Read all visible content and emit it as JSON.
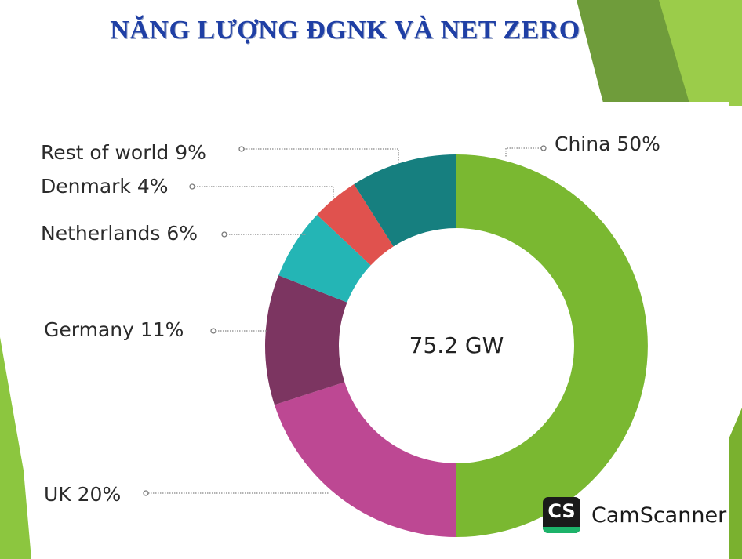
{
  "page": {
    "title": "NĂNG LƯỢNG ĐGNK VÀ NET ZERO",
    "watermark": {
      "logo_text": "CS",
      "name": "CamScanner"
    }
  },
  "colors": {
    "title": "#1f3fa5",
    "slide_green_dark": "#6f9c3b",
    "slide_green_light": "#9bcc4a"
  },
  "chart_data": {
    "type": "pie",
    "style": "donut",
    "title": "",
    "center_label": "75.2 GW",
    "unit": "%",
    "slices": [
      {
        "name": "China",
        "value": 50,
        "label": "China 50%",
        "color": "#7ab831"
      },
      {
        "name": "UK",
        "value": 20,
        "label": "UK 20%",
        "color": "#bd4893"
      },
      {
        "name": "Germany",
        "value": 11,
        "label": "Germany 11%",
        "color": "#7c3561"
      },
      {
        "name": "Netherlands",
        "value": 6,
        "label": "Netherlands 6%",
        "color": "#24b5b5"
      },
      {
        "name": "Denmark",
        "value": 4,
        "label": "Denmark 4%",
        "color": "#e0524e"
      },
      {
        "name": "Rest of world",
        "value": 9,
        "label": "Rest of world 9%",
        "color": "#167f7f"
      }
    ]
  }
}
